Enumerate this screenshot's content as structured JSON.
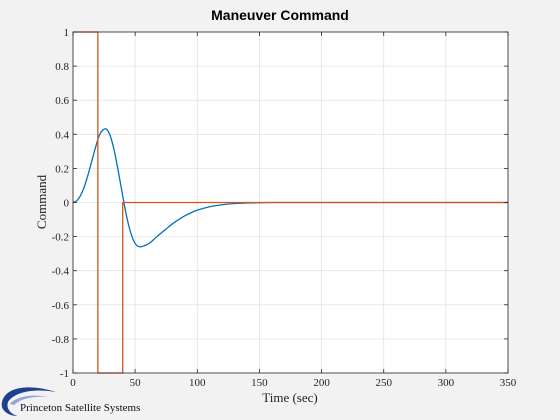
{
  "chart_data": {
    "type": "line",
    "title": "Maneuver Command",
    "xlabel": "Time (sec)",
    "ylabel": "Command",
    "xlim": [
      0,
      350
    ],
    "ylim": [
      -1,
      1
    ],
    "x_ticks": [
      0,
      50,
      100,
      150,
      200,
      250,
      300,
      350
    ],
    "y_ticks": [
      -1,
      -0.8,
      -0.6,
      -0.4,
      -0.2,
      0,
      0.2,
      0.4,
      0.6,
      0.8,
      1
    ],
    "x_tick_labels": [
      "0",
      "50",
      "100",
      "150",
      "200",
      "250",
      "300",
      "350"
    ],
    "y_tick_labels": [
      "-1",
      "-0.8",
      "-0.6",
      "-0.4",
      "-0.2",
      "0",
      "0.2",
      "0.4",
      "0.6",
      "0.8",
      "1"
    ],
    "grid": true,
    "series": [
      {
        "color": "#0072bd",
        "x": [
          0,
          3,
          6,
          9,
          12,
          15,
          18,
          21,
          24,
          27,
          30,
          33,
          36,
          39,
          42,
          45,
          48,
          51,
          54,
          57,
          60,
          63,
          66,
          70,
          75,
          80,
          85,
          90,
          95,
          100,
          110,
          120,
          130,
          140,
          150,
          160,
          175,
          200,
          250,
          300,
          350
        ],
        "y": [
          0,
          0.01,
          0.04,
          0.09,
          0.16,
          0.24,
          0.32,
          0.39,
          0.425,
          0.43,
          0.39,
          0.31,
          0.2,
          0.08,
          -0.04,
          -0.14,
          -0.21,
          -0.25,
          -0.26,
          -0.255,
          -0.245,
          -0.23,
          -0.21,
          -0.185,
          -0.155,
          -0.125,
          -0.1,
          -0.078,
          -0.06,
          -0.045,
          -0.025,
          -0.013,
          -0.006,
          -0.003,
          -0.001,
          0,
          0,
          0,
          0,
          0,
          0
        ]
      },
      {
        "color": "#d95319",
        "x": [
          0,
          20,
          20,
          40,
          40,
          350
        ],
        "y": [
          1,
          1,
          -1,
          -1,
          0,
          0
        ]
      }
    ]
  },
  "logo": {
    "company": "Princeton Satellite Systems"
  }
}
